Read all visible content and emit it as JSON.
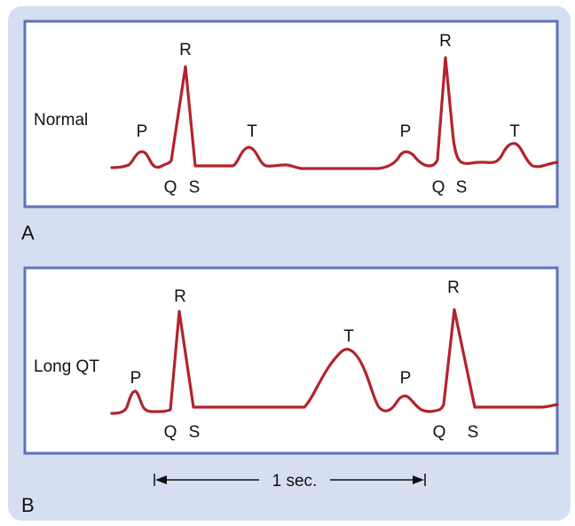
{
  "colors": {
    "background": "#d6def2",
    "frame": "#5f73b8",
    "trace": "#b3232c",
    "text": "#111111"
  },
  "panel_a": {
    "label": "A",
    "trace_label": "Normal",
    "beat_1": {
      "p": "P",
      "q": "Q",
      "r": "R",
      "s": "S",
      "t": "T"
    },
    "beat_2": {
      "p": "P",
      "q": "Q",
      "r": "R",
      "s": "S",
      "t": "T"
    }
  },
  "panel_b": {
    "label": "B",
    "trace_label": "Long QT",
    "beat_1": {
      "p": "P",
      "q": "Q",
      "r": "R",
      "s": "S",
      "t": "T"
    },
    "beat_2": {
      "p": "P",
      "q": "Q",
      "r": "R",
      "s": "S"
    }
  },
  "scale_bar": {
    "label": "1 sec."
  }
}
